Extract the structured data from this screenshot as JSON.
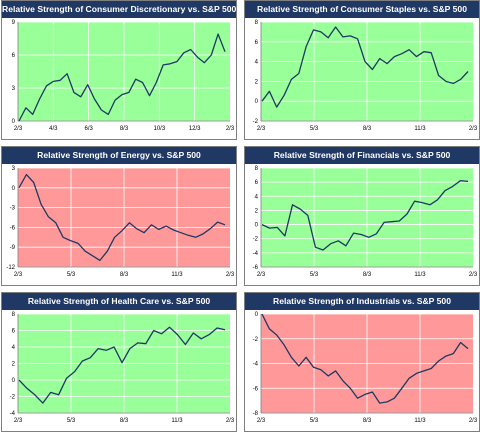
{
  "colors": {
    "title_bg": "#1f3864",
    "positive_bg": "#99ff99",
    "negative_bg": "#ff9999",
    "line": "#1f3864",
    "grid": "#ffffff"
  },
  "chart_data": [
    {
      "type": "line",
      "title": "Relative Strength of Consumer Discretionary vs. S&P 500",
      "background": "positive",
      "x_ticks": [
        "2/3",
        "4/3",
        "6/3",
        "8/3",
        "10/3",
        "12/3",
        "2/3"
      ],
      "ylim": [
        0,
        9
      ],
      "y_ticks": [
        0,
        3,
        6,
        9
      ],
      "series": [
        {
          "name": "",
          "values": [
            0,
            1.2,
            0.6,
            2,
            3.2,
            3.6,
            3.7,
            4.3,
            2.6,
            2.2,
            3.3,
            2,
            1,
            0.6,
            1.9,
            2.4,
            2.6,
            3.8,
            3.5,
            2.3,
            3.5,
            5.1,
            5.2,
            5.4,
            6.2,
            6.5,
            5.8,
            5.3,
            6,
            7.9,
            6.3
          ]
        }
      ],
      "grid": true,
      "legend": "none"
    },
    {
      "type": "line",
      "title": "Relative Strength of Consumer Staples vs. S&P 500",
      "background": "positive",
      "x_ticks": [
        "2/3",
        "5/3",
        "8/3",
        "11/3",
        "2/3"
      ],
      "ylim": [
        -2,
        8
      ],
      "y_ticks": [
        -2,
        0,
        2,
        4,
        6,
        8
      ],
      "series": [
        {
          "name": "",
          "values": [
            0,
            1,
            -0.6,
            0.6,
            2.2,
            2.8,
            5.5,
            7.2,
            7,
            6.4,
            7.5,
            6.5,
            6.6,
            6.3,
            4,
            3.2,
            4.3,
            3.8,
            4.5,
            4.8,
            5.2,
            4.5,
            5,
            4.9,
            2.6,
            2,
            1.8,
            2.2,
            3
          ]
        }
      ],
      "grid": true,
      "legend": "none"
    },
    {
      "type": "line",
      "title": "Relative Strength of Energy vs. S&P 500",
      "background": "negative",
      "x_ticks": [
        "2/3",
        "5/3",
        "8/3",
        "11/3",
        "2/3"
      ],
      "ylim": [
        -12,
        3
      ],
      "y_ticks": [
        -12,
        -9,
        -6,
        -3,
        0,
        3
      ],
      "series": [
        {
          "name": "",
          "values": [
            0,
            2,
            0.8,
            -2.5,
            -4.4,
            -5.3,
            -7.5,
            -8,
            -8.4,
            -9.6,
            -10.3,
            -11,
            -9.6,
            -7.5,
            -6.5,
            -5.3,
            -6.2,
            -6.8,
            -5.6,
            -6.3,
            -5.8,
            -6.4,
            -6.8,
            -7.2,
            -7.5,
            -7,
            -6.2,
            -5.2,
            -5.6
          ]
        }
      ],
      "grid": true,
      "legend": "none"
    },
    {
      "type": "line",
      "title": "Relative Strength of Financials vs. S&P 500",
      "background": "positive",
      "x_ticks": [
        "2/3",
        "5/3",
        "8/3",
        "11/3",
        "2/3"
      ],
      "ylim": [
        -6,
        8
      ],
      "y_ticks": [
        -6,
        -4,
        -2,
        0,
        2,
        4,
        6,
        8
      ],
      "series": [
        {
          "name": "",
          "values": [
            0,
            -0.5,
            -0.4,
            -1.6,
            2.8,
            2.2,
            1.3,
            -3.2,
            -3.6,
            -2.7,
            -2.3,
            -3,
            -1.2,
            -1.4,
            -1.8,
            -1.3,
            0.3,
            0.4,
            0.5,
            1.5,
            3.3,
            3.1,
            2.8,
            3.5,
            4.8,
            5.4,
            6.2,
            6.1
          ]
        }
      ],
      "grid": true,
      "legend": "none"
    },
    {
      "type": "line",
      "title": "Relative Strength of Health Care vs. S&P 500",
      "background": "positive",
      "x_ticks": [
        "2/3",
        "5/3",
        "8/3",
        "11/3",
        "2/3"
      ],
      "ylim": [
        -4,
        8
      ],
      "y_ticks": [
        -4,
        -2,
        0,
        2,
        4,
        6,
        8
      ],
      "series": [
        {
          "name": "",
          "values": [
            0,
            -1,
            -1.8,
            -2.8,
            -1.5,
            -1.8,
            0.2,
            1,
            2.3,
            2.7,
            3.8,
            3.6,
            4,
            2.1,
            3.8,
            4.5,
            4.4,
            6,
            5.6,
            6.4,
            5.5,
            4.3,
            5.7,
            5,
            5.5,
            6.3,
            6.1
          ]
        }
      ],
      "grid": true,
      "legend": "none"
    },
    {
      "type": "line",
      "title": "Relative Strength of Industrials vs. S&P 500",
      "background": "negative",
      "x_ticks": [
        "2/3",
        "5/3",
        "8/3",
        "11/3",
        "2/3"
      ],
      "ylim": [
        -8,
        0
      ],
      "y_ticks": [
        -8,
        -6,
        -4,
        -2,
        0
      ],
      "series": [
        {
          "name": "",
          "values": [
            0,
            -1.2,
            -1.7,
            -2.5,
            -3.5,
            -4.2,
            -3.5,
            -4.3,
            -4.5,
            -5,
            -4.6,
            -5.4,
            -6,
            -6.8,
            -6.5,
            -6.3,
            -7.2,
            -7.1,
            -6.8,
            -6,
            -5.2,
            -4.8,
            -4.6,
            -4.4,
            -3.8,
            -3.4,
            -3.2,
            -2.3,
            -2.8
          ]
        }
      ],
      "grid": true,
      "legend": "none"
    }
  ]
}
